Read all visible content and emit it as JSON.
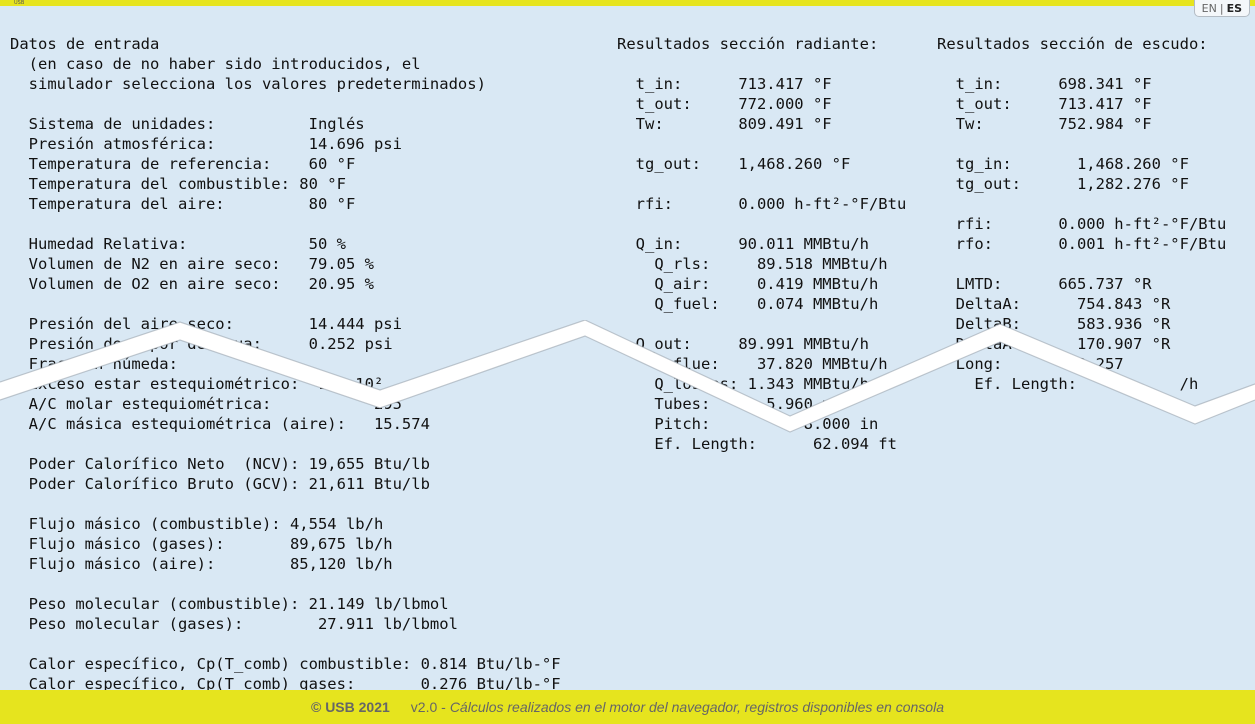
{
  "header": {
    "logo_text": "USB",
    "lang_options": [
      "EN",
      "ES"
    ],
    "lang_active": "ES"
  },
  "left": {
    "lines": [
      "Datos de entrada",
      "  (en caso de no haber sido introducidos, el",
      "  simulador selecciona los valores predeterminados)",
      "",
      "  Sistema de unidades:          Inglés",
      "  Presión atmosférica:          14.696 psi",
      "  Temperatura de referencia:    60 °F",
      "  Temperatura del combustible: 80 °F",
      "  Temperatura del aire:         80 °F",
      "",
      "  Humedad Relativa:             50 %",
      "  Volumen de N2 en aire seco:   79.05 %",
      "  Volumen de O2 en aire seco:   20.95 %",
      "",
      "  Presión del aire seco:        14.444 psi",
      "  Presión de vapor de agua:     0.252 psi",
      "  Fracción húmeda:",
      "  Exceso estar estequiométrico:  14 ÷10²",
      "  A/C molar estequiométrica:           295",
      "  A/C másica estequiométrica (aire):   15.574",
      "",
      "  Poder Calorífico Neto  (NCV): 19,655 Btu/lb",
      "  Poder Calorífico Bruto (GCV): 21,611 Btu/lb",
      "",
      "  Flujo másico (combustible): 4,554 lb/h",
      "  Flujo másico (gases):       89,675 lb/h",
      "  Flujo másico (aire):        85,120 lb/h",
      "",
      "  Peso molecular (combustible): 21.149 lb/lbmol",
      "  Peso molecular (gases):        27.911 lb/lbmol",
      "",
      "  Calor específico, Cp(T_comb) combustible: 0.814 Btu/lb-°F",
      "  Calor específico, Cp(T_comb) gases:       0.276 Btu/lb-°F"
    ]
  },
  "middle": {
    "lines": [
      "Resultados sección radiante:",
      "",
      "  t_in:      713.417 °F",
      "  t_out:     772.000 °F",
      "  Tw:        809.491 °F",
      "",
      "  tg_out:    1,468.260 °F",
      "",
      "  rfi:       0.000 h-ft²-°F/Btu",
      "",
      "  Q_in:      90.011 MMBtu/h",
      "    Q_rls:     89.518 MMBtu/h",
      "    Q_air:     0.419 MMBtu/h",
      "    Q_fuel:    0.074 MMBtu/h",
      "",
      "  Q_out:     89.991 MMBtu/h",
      "    Q_flue:    37.820 MMBtu/h",
      "    Q_losses: 1.343 MMBtu/h",
      "    Tubes:      5.960 m",
      "    Pitch:          8.000 in",
      "    Ef. Length:      62.094 ft"
    ]
  },
  "right": {
    "lines": [
      "Resultados sección de escudo:",
      "",
      "  t_in:      698.341 °F",
      "  t_out:     713.417 °F",
      "  Tw:        752.984 °F",
      "",
      "  tg_in:       1,468.260 °F",
      "  tg_out:      1,282.276 °F",
      "",
      "  rfi:       0.000 h-ft²-°F/Btu",
      "  rfo:       0.001 h-ft²-°F/Btu",
      "",
      "  LMTD:      665.737 °R",
      "  DeltaA:      754.843 °R",
      "  DeltaB:      583.936 °R",
      "  DeltaA-B:    170.907 °R",
      "  Long:        0.257",
      "    Ef. Length:           /h"
    ]
  },
  "footer": {
    "copyright": "© USB 2021",
    "version": "v2.0 -",
    "description": "Cálculos realizados en el motor del navegador, registros disponibles en consola"
  },
  "colors": {
    "background": "#d9e8f4",
    "accent_bar": "#e6e41e"
  }
}
